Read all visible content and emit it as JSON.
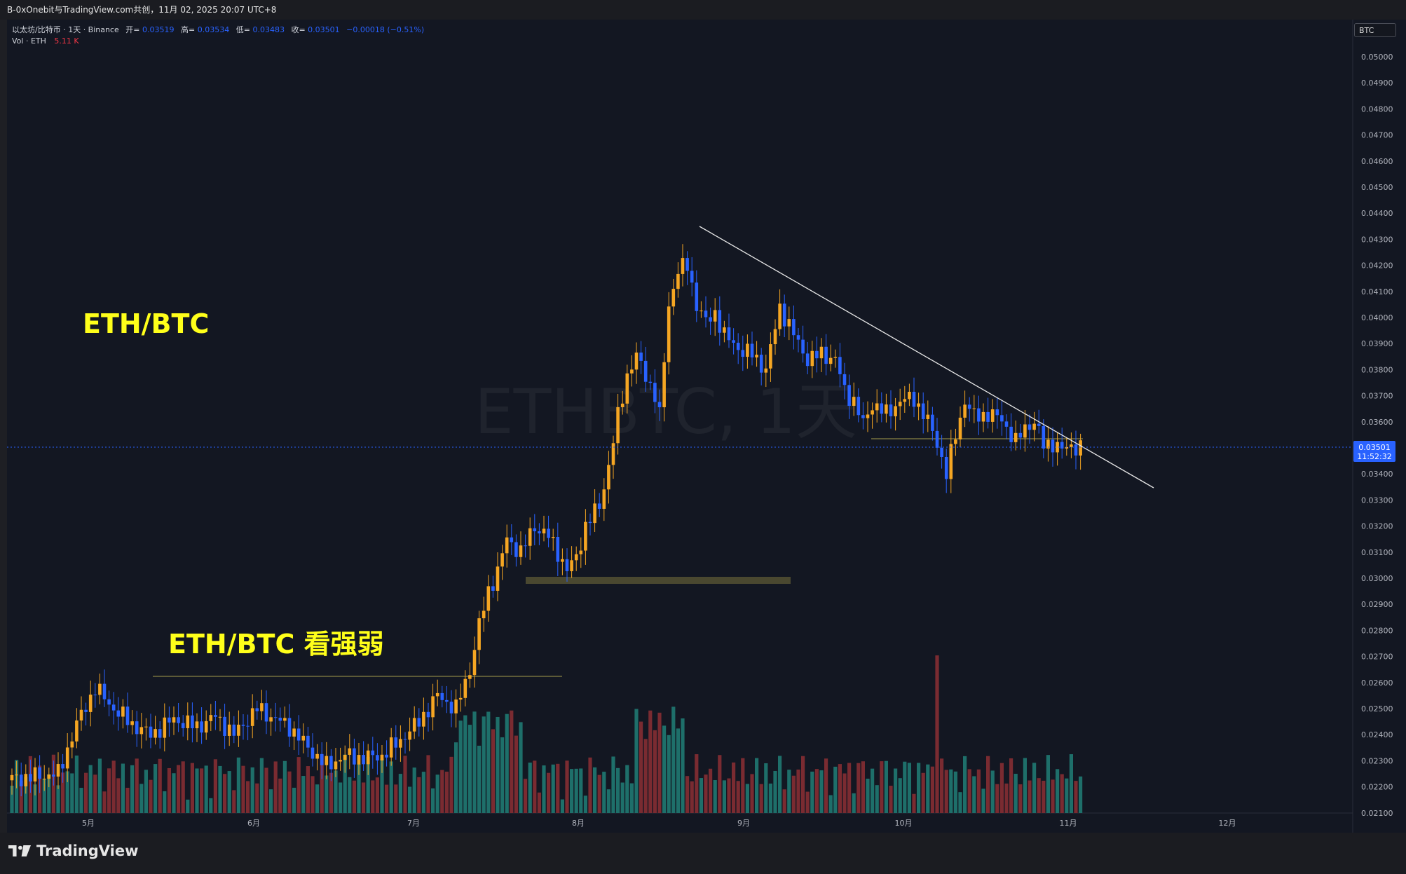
{
  "header": {
    "title": "B-0xOnebit与TradingView.com共创，11月 02, 2025 20:07 UTC+8"
  },
  "legend": {
    "symbol": "以太坊/比特币 · 1天 · Binance",
    "open_label": "开=",
    "open_value": "0.03519",
    "high_label": "高=",
    "high_value": "0.03534",
    "low_label": "低=",
    "low_value": "0.03483",
    "close_label": "收=",
    "close_value": "0.03501",
    "change": "−0.00018 (−0.51%)",
    "vol_label": "Vol · ETH",
    "vol_value": "5.11 K"
  },
  "watermark": "ETHBTC, 1天",
  "annotations": {
    "main": "ETH/BTC",
    "sub": "ETH/BTC  看强弱"
  },
  "currency_badge": "BTC",
  "last_price": {
    "price": "0.03501",
    "countdown": "11:52:32"
  },
  "brand": "TradingView",
  "colors": {
    "background": "#131722",
    "up": "#f5a623",
    "down": "#2962ff",
    "vol_up": "#1e6f6a",
    "vol_down": "#7a2b31",
    "annotation": "#ffff1a"
  },
  "chart_data": {
    "type": "candlestick",
    "symbol": "ETHBTC",
    "interval": "1天",
    "y_ticks": [
      "0.05000",
      "0.04900",
      "0.04800",
      "0.04700",
      "0.04600",
      "0.04500",
      "0.04400",
      "0.04300",
      "0.04200",
      "0.04100",
      "0.04000",
      "0.03900",
      "0.03800",
      "0.03700",
      "0.03600",
      "0.03500",
      "0.03400",
      "0.03300",
      "0.03200",
      "0.03100",
      "0.03000",
      "0.02900",
      "0.02800",
      "0.02700",
      "0.02600",
      "0.02500",
      "0.02400",
      "0.02300",
      "0.02200",
      "0.02100"
    ],
    "x_ticks": [
      "5月",
      "6月",
      "7月",
      "8月",
      "9月",
      "10月",
      "11月",
      "12月"
    ],
    "ylim": [
      0.0209,
      0.0515
    ],
    "trendline": {
      "from_price": 0.0442,
      "to_price": 0.0332
    },
    "horizontal_levels": [
      0.0262,
      0.0299,
      0.0354
    ]
  }
}
